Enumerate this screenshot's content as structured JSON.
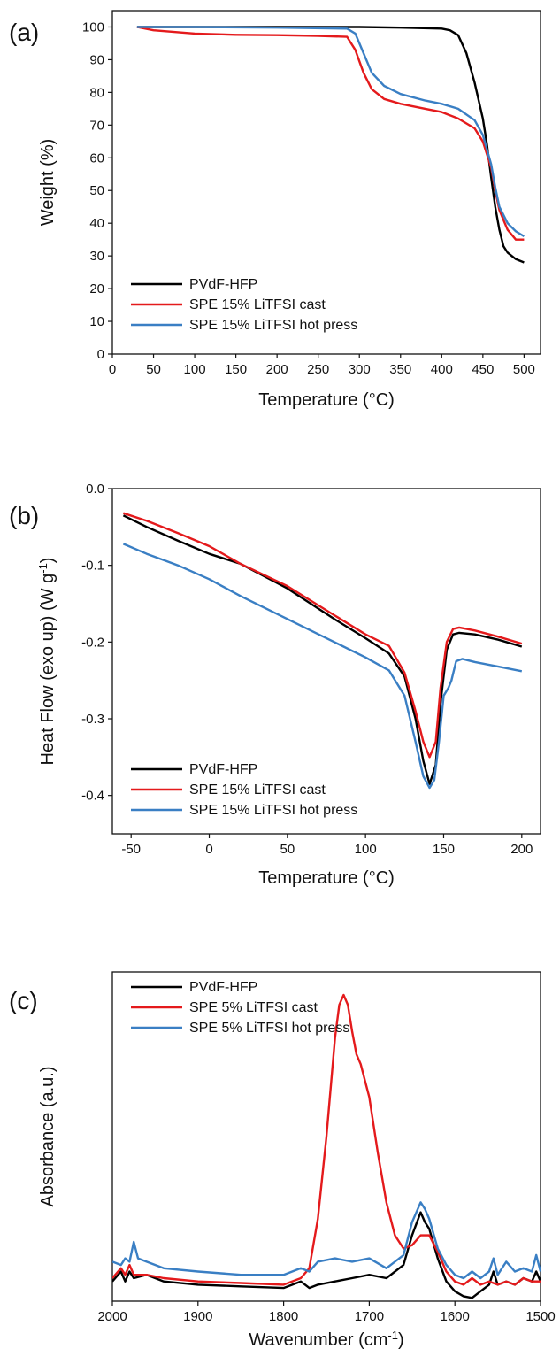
{
  "chart_data": [
    {
      "panel": "(a)",
      "type": "line",
      "xlabel": "Temperature (°C)",
      "ylabel": "Weight (%)",
      "xlim": [
        0,
        520
      ],
      "ylim": [
        0,
        105
      ],
      "xticks": [
        0,
        50,
        100,
        150,
        200,
        250,
        300,
        350,
        400,
        450,
        500
      ],
      "yticks": [
        0,
        10,
        20,
        30,
        40,
        50,
        60,
        70,
        80,
        90,
        100
      ],
      "legend_position": "bottom-left",
      "series": [
        {
          "name": "PVdF-HFP",
          "color": "#000000",
          "x": [
            30,
            100,
            200,
            300,
            350,
            400,
            410,
            420,
            430,
            440,
            450,
            455,
            460,
            465,
            470,
            475,
            480,
            490,
            500
          ],
          "y": [
            100,
            100,
            100,
            100,
            99.8,
            99.5,
            99,
            97.5,
            92,
            83,
            72,
            64,
            54,
            45,
            38,
            33,
            31,
            29,
            28
          ]
        },
        {
          "name": "SPE 15% LiTFSI cast",
          "color": "#e41a1c",
          "x": [
            30,
            50,
            100,
            150,
            200,
            250,
            285,
            295,
            305,
            315,
            330,
            350,
            380,
            400,
            420,
            440,
            450,
            460,
            465,
            470,
            480,
            490,
            500
          ],
          "y": [
            100,
            99,
            98,
            97.6,
            97.5,
            97.3,
            97,
            93,
            86,
            81,
            78,
            76.5,
            75,
            74,
            72,
            69,
            65,
            57,
            50,
            44,
            38,
            35,
            35
          ]
        },
        {
          "name": "SPE 15% LiTFSI hot press",
          "color": "#3a7fc4",
          "x": [
            30,
            100,
            200,
            285,
            295,
            305,
            315,
            330,
            350,
            380,
            400,
            420,
            440,
            450,
            460,
            465,
            470,
            480,
            490,
            500
          ],
          "y": [
            100,
            100,
            99.8,
            99.5,
            98,
            92,
            86,
            82,
            79.5,
            77.5,
            76.5,
            75,
            71.5,
            67,
            58,
            51,
            45,
            40,
            37.5,
            36
          ]
        }
      ]
    },
    {
      "panel": "(b)",
      "type": "line",
      "xlabel": "Temperature (°C)",
      "ylabel": "Heat Flow (exo up) (W g",
      "ylabel_sup": "-1",
      "ylabel_end": ")",
      "xlim": [
        -62,
        212
      ],
      "ylim": [
        -0.45,
        0
      ],
      "xticks": [
        -50,
        0,
        50,
        100,
        150,
        200
      ],
      "yticks": [
        0.0,
        -0.1,
        -0.2,
        -0.3,
        -0.4
      ],
      "ytick_labels": [
        "0.0",
        "-0.1",
        "-0.2",
        "-0.3",
        "-0.4"
      ],
      "legend_position": "bottom-left",
      "series": [
        {
          "name": "PVdF-HFP",
          "color": "#000000",
          "x": [
            -55,
            -40,
            -20,
            0,
            20,
            50,
            80,
            100,
            115,
            125,
            132,
            137,
            141,
            145,
            148,
            152,
            156,
            160,
            170,
            185,
            200
          ],
          "y": [
            -0.035,
            -0.05,
            -0.068,
            -0.085,
            -0.098,
            -0.13,
            -0.17,
            -0.195,
            -0.215,
            -0.245,
            -0.3,
            -0.355,
            -0.385,
            -0.36,
            -0.28,
            -0.21,
            -0.19,
            -0.188,
            -0.19,
            -0.197,
            -0.206
          ]
        },
        {
          "name": "SPE 15% LiTFSI cast",
          "color": "#e41a1c",
          "x": [
            -55,
            -40,
            -20,
            0,
            20,
            50,
            80,
            100,
            115,
            125,
            132,
            137,
            141,
            145,
            148,
            152,
            156,
            160,
            170,
            185,
            200
          ],
          "y": [
            -0.032,
            -0.042,
            -0.058,
            -0.075,
            -0.098,
            -0.127,
            -0.165,
            -0.19,
            -0.205,
            -0.24,
            -0.29,
            -0.33,
            -0.35,
            -0.33,
            -0.26,
            -0.2,
            -0.183,
            -0.181,
            -0.185,
            -0.193,
            -0.202
          ]
        },
        {
          "name": "SPE 15% LiTFSI hot press",
          "color": "#3a7fc4",
          "x": [
            -55,
            -40,
            -20,
            0,
            20,
            50,
            80,
            100,
            115,
            125,
            132,
            137,
            141,
            144,
            147,
            150,
            153,
            155,
            158,
            162,
            170,
            185,
            200
          ],
          "y": [
            -0.072,
            -0.085,
            -0.1,
            -0.118,
            -0.14,
            -0.17,
            -0.2,
            -0.22,
            -0.237,
            -0.27,
            -0.33,
            -0.375,
            -0.39,
            -0.38,
            -0.33,
            -0.27,
            -0.26,
            -0.25,
            -0.225,
            -0.222,
            -0.226,
            -0.232,
            -0.238
          ]
        }
      ]
    },
    {
      "panel": "(c)",
      "type": "line",
      "xlabel": "Wavenumber (cm",
      "xlabel_sup": "-1",
      "xlabel_end": ")",
      "ylabel": "Absorbance (a.u.)",
      "xlim": [
        2000,
        1500
      ],
      "ylim": [
        0,
        1
      ],
      "xticks": [
        2000,
        1900,
        1800,
        1700,
        1600,
        1500
      ],
      "legend_position": "top-left",
      "series": [
        {
          "name": "PVdF-HFP",
          "color": "#000000",
          "x": [
            2000,
            1990,
            1985,
            1980,
            1975,
            1960,
            1940,
            1900,
            1850,
            1800,
            1780,
            1770,
            1760,
            1740,
            1720,
            1700,
            1680,
            1660,
            1650,
            1640,
            1635,
            1630,
            1620,
            1610,
            1600,
            1590,
            1580,
            1570,
            1560,
            1555,
            1550,
            1540,
            1530,
            1520,
            1510,
            1505,
            1500
          ],
          "y": [
            0.06,
            0.09,
            0.06,
            0.09,
            0.07,
            0.08,
            0.06,
            0.05,
            0.045,
            0.04,
            0.06,
            0.04,
            0.05,
            0.06,
            0.07,
            0.08,
            0.07,
            0.11,
            0.2,
            0.27,
            0.24,
            0.22,
            0.13,
            0.06,
            0.03,
            0.015,
            0.01,
            0.03,
            0.05,
            0.09,
            0.05,
            0.06,
            0.05,
            0.07,
            0.06,
            0.09,
            0.06
          ]
        },
        {
          "name": "SPE 5% LiTFSI cast",
          "color": "#e41a1c",
          "x": [
            2000,
            1990,
            1985,
            1980,
            1975,
            1960,
            1940,
            1900,
            1850,
            1800,
            1780,
            1770,
            1760,
            1750,
            1740,
            1735,
            1730,
            1725,
            1720,
            1715,
            1710,
            1700,
            1690,
            1680,
            1670,
            1660,
            1650,
            1640,
            1630,
            1620,
            1610,
            1600,
            1590,
            1580,
            1570,
            1560,
            1550,
            1540,
            1530,
            1520,
            1510,
            1500
          ],
          "y": [
            0.07,
            0.1,
            0.08,
            0.11,
            0.08,
            0.08,
            0.07,
            0.06,
            0.055,
            0.05,
            0.07,
            0.1,
            0.25,
            0.5,
            0.8,
            0.9,
            0.93,
            0.9,
            0.82,
            0.75,
            0.72,
            0.62,
            0.45,
            0.3,
            0.2,
            0.16,
            0.17,
            0.2,
            0.2,
            0.15,
            0.09,
            0.06,
            0.05,
            0.07,
            0.05,
            0.06,
            0.05,
            0.06,
            0.05,
            0.07,
            0.06,
            0.06
          ]
        },
        {
          "name": "SPE 5% LiTFSI hot press",
          "color": "#3a7fc4",
          "x": [
            2000,
            1990,
            1985,
            1980,
            1975,
            1970,
            1960,
            1940,
            1900,
            1850,
            1800,
            1780,
            1770,
            1760,
            1740,
            1720,
            1700,
            1680,
            1660,
            1650,
            1640,
            1635,
            1630,
            1620,
            1610,
            1600,
            1590,
            1580,
            1570,
            1560,
            1555,
            1550,
            1540,
            1530,
            1520,
            1510,
            1505,
            1500
          ],
          "y": [
            0.12,
            0.11,
            0.13,
            0.12,
            0.18,
            0.13,
            0.12,
            0.1,
            0.09,
            0.08,
            0.08,
            0.1,
            0.09,
            0.12,
            0.13,
            0.12,
            0.13,
            0.1,
            0.14,
            0.24,
            0.3,
            0.28,
            0.25,
            0.16,
            0.11,
            0.08,
            0.07,
            0.09,
            0.07,
            0.09,
            0.13,
            0.08,
            0.12,
            0.09,
            0.1,
            0.09,
            0.14,
            0.09
          ]
        }
      ]
    }
  ]
}
